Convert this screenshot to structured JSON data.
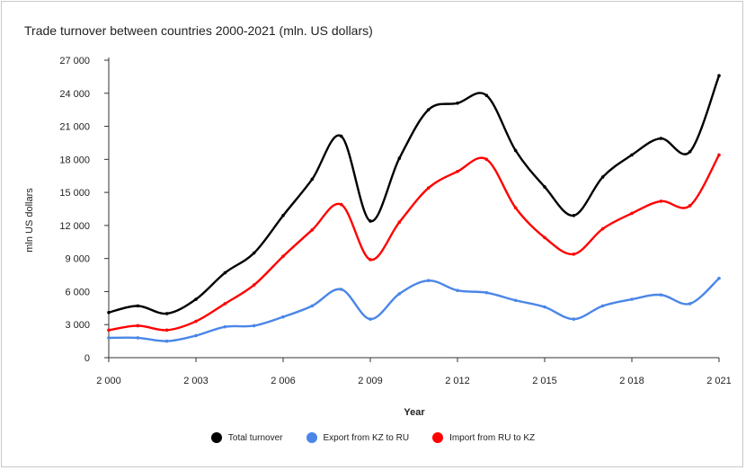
{
  "chart_data": {
    "type": "line",
    "title": "Trade turnover between countries 2000-2021 (mln. US dollars)",
    "xlabel": "Year",
    "ylabel": "mln US dollars",
    "x": [
      2000,
      2001,
      2002,
      2003,
      2004,
      2005,
      2006,
      2007,
      2008,
      2009,
      2010,
      2011,
      2012,
      2013,
      2014,
      2015,
      2016,
      2017,
      2018,
      2019,
      2020,
      2021
    ],
    "xticks": [
      2000,
      2003,
      2006,
      2009,
      2012,
      2015,
      2018,
      2021
    ],
    "xtick_labels": [
      "2 000",
      "2 003",
      "2 006",
      "2 009",
      "2 012",
      "2 015",
      "2 018",
      "2 021"
    ],
    "ylim": [
      0,
      27000
    ],
    "yticks": [
      0,
      3000,
      6000,
      9000,
      12000,
      15000,
      18000,
      21000,
      24000,
      27000
    ],
    "ytick_labels": [
      "0",
      "3 000",
      "6 000",
      "9 000",
      "12 000",
      "15 000",
      "18 000",
      "21 000",
      "24 000",
      "27 000"
    ],
    "grid": false,
    "legend_position": "bottom",
    "series": [
      {
        "name": "Total turnover",
        "color": "#000000",
        "values": [
          4100,
          4700,
          4000,
          5300,
          7700,
          9500,
          12900,
          16200,
          20100,
          12400,
          18100,
          22500,
          23100,
          23800,
          18800,
          15500,
          12900,
          16400,
          18400,
          19900,
          18700,
          25600
        ]
      },
      {
        "name": "Export from KZ to RU",
        "color": "#4a86e8",
        "values": [
          1800,
          1800,
          1500,
          2000,
          2800,
          2900,
          3700,
          4700,
          6200,
          3500,
          5800,
          7000,
          6100,
          5900,
          5200,
          4600,
          3500,
          4700,
          5300,
          5700,
          4900,
          7200
        ]
      },
      {
        "name": "Import from RU to KZ",
        "color": "#ff0000",
        "values": [
          2500,
          2900,
          2500,
          3300,
          4900,
          6600,
          9200,
          11600,
          13900,
          8900,
          12300,
          15400,
          16900,
          18000,
          13600,
          10900,
          9400,
          11700,
          13100,
          14200,
          13800,
          18400
        ]
      }
    ]
  }
}
